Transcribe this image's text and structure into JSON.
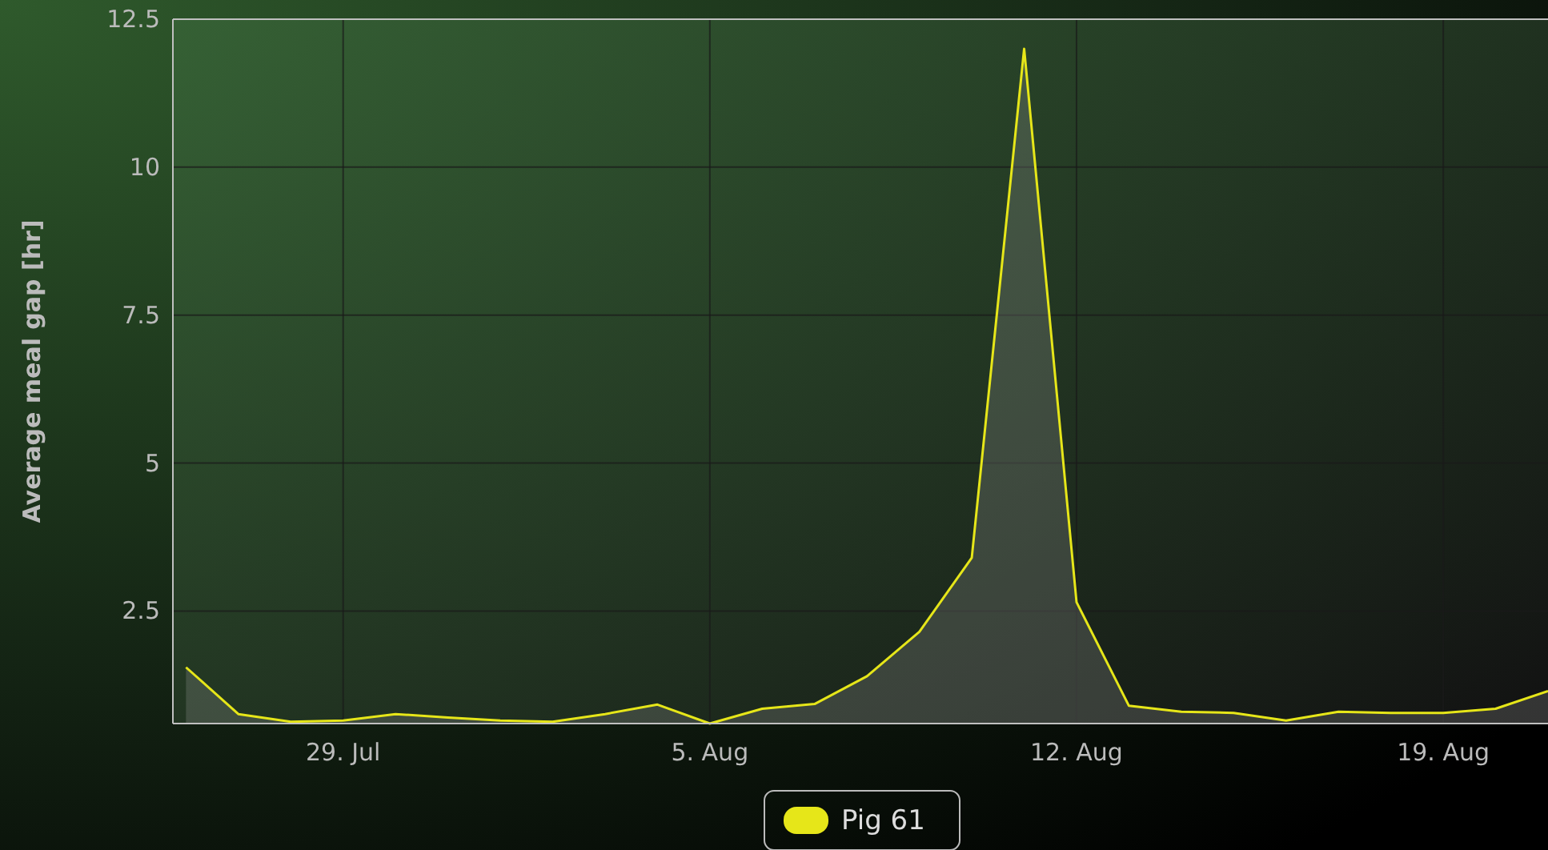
{
  "chart_data": {
    "type": "area",
    "ylabel": "Average meal gap [hr]",
    "x": [
      "--07-26",
      "--07-27",
      "--07-28",
      "--07-29",
      "--07-30",
      "--07-31",
      "--08-01",
      "--08-02",
      "--08-03",
      "--08-04",
      "--08-05",
      "--08-06",
      "--08-07",
      "--08-08",
      "--08-09",
      "--08-10",
      "--08-11",
      "--08-12",
      "--08-13",
      "--08-14",
      "--08-15",
      "--08-16",
      "--08-17",
      "--08-18",
      "--08-19",
      "--08-20",
      "--08-21"
    ],
    "series": [
      {
        "name": "Pig 61",
        "color": "#e6e619",
        "values": [
          1.55,
          0.76,
          0.63,
          0.65,
          0.76,
          0.7,
          0.65,
          0.63,
          0.76,
          0.92,
          0.6,
          0.85,
          0.93,
          1.4,
          2.15,
          3.4,
          12.0,
          2.65,
          0.9,
          0.8,
          0.78,
          0.65,
          0.8,
          0.78,
          0.78,
          0.85,
          1.15
        ]
      }
    ],
    "xlim": [
      "--07-25T18:00",
      "--08-21"
    ],
    "xticks": [
      {
        "value": "--07-29",
        "label": "29. Jul"
      },
      {
        "value": "--08-05",
        "label": "5. Aug"
      },
      {
        "value": "--08-12",
        "label": "12. Aug"
      },
      {
        "value": "--08-19",
        "label": "19. Aug"
      }
    ],
    "ylim": [
      0.6,
      12.5
    ],
    "yticks": [
      2.5,
      5,
      7.5,
      10,
      12.5
    ],
    "grid": true,
    "legend": "bottom"
  }
}
